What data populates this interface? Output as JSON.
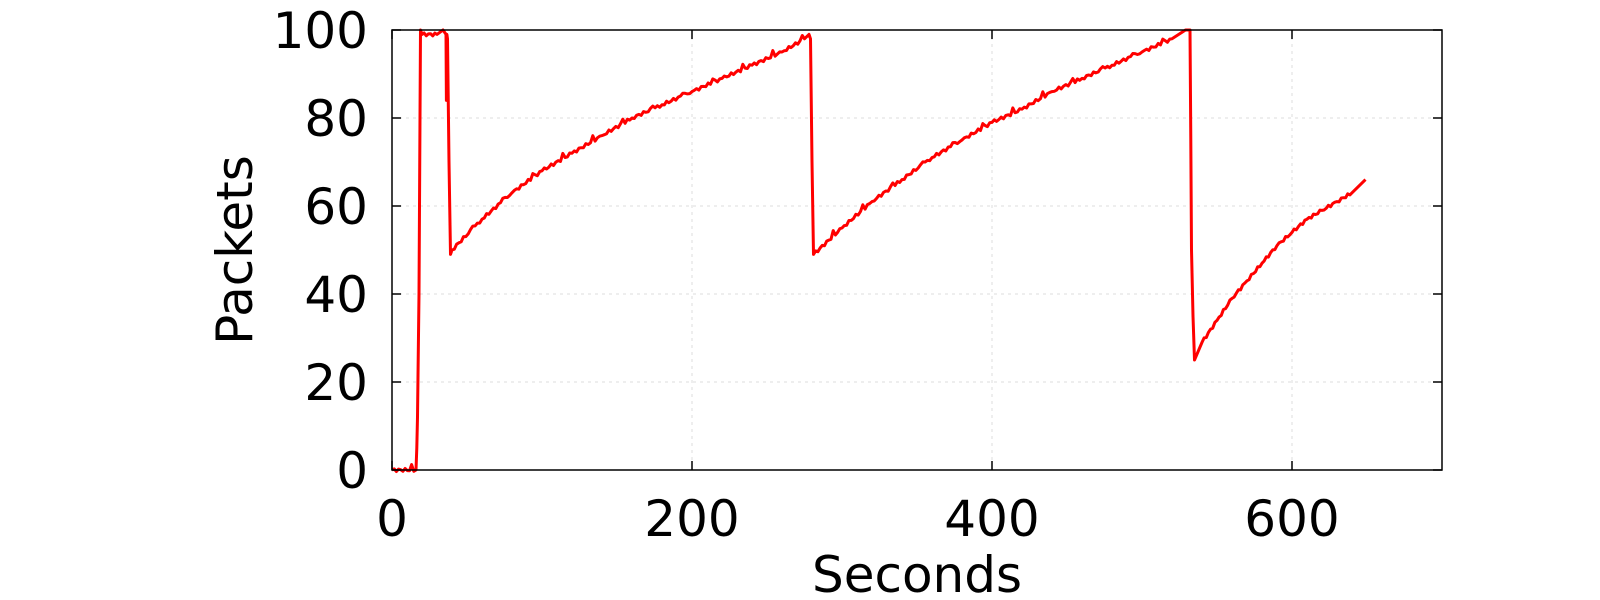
{
  "chart_data": {
    "type": "line",
    "title": "",
    "xlabel": "Seconds",
    "ylabel": "Packets",
    "xlim": [
      0,
      700
    ],
    "ylim": [
      0,
      100
    ],
    "xticks": [
      0,
      200,
      400,
      600
    ],
    "yticks": [
      0,
      20,
      40,
      60,
      80,
      100
    ],
    "grid": true,
    "legend": "none",
    "series": [
      {
        "color": "#ff0000",
        "x": [
          0,
          16,
          16.5,
          17,
          18,
          19,
          20,
          30,
          34,
          36,
          36.3,
          36.6,
          37,
          38,
          39,
          40,
          60,
          80,
          100,
          120,
          140,
          160,
          180,
          200,
          220,
          240,
          260,
          275,
          278,
          279,
          280,
          281,
          300,
          320,
          340,
          360,
          380,
          400,
          420,
          440,
          460,
          480,
          500,
          520,
          529,
          532,
          532.5,
          533,
          534,
          535,
          540,
          550,
          560,
          570,
          580,
          590,
          600,
          610,
          620,
          630,
          640,
          649
        ],
        "y": [
          0,
          0,
          5,
          12,
          40,
          100,
          99,
          99,
          100,
          99,
          84,
          99,
          98,
          70,
          49,
          50,
          57,
          63,
          68,
          72,
          76,
          80,
          83,
          86,
          89,
          92,
          95,
          98,
          99,
          98,
          70,
          49,
          55,
          61,
          66,
          71,
          75,
          79,
          82,
          86,
          89,
          92,
          95,
          98,
          100,
          100,
          75,
          50,
          35,
          25,
          29,
          34,
          39,
          43,
          47,
          51,
          54,
          57,
          59,
          61,
          63,
          66
        ]
      }
    ]
  }
}
